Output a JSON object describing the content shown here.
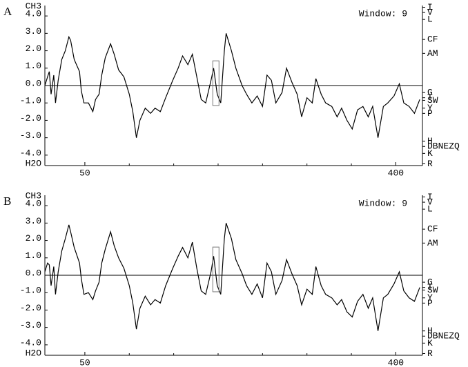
{
  "chart_data": [
    {
      "type": "line",
      "panel_label": "A",
      "annotation": "Window: 9",
      "top_label": "CH3",
      "bottom_label": "H2O",
      "x": [
        5,
        8,
        10,
        12,
        15,
        17,
        20,
        24,
        28,
        32,
        34,
        38,
        44,
        46,
        49,
        54,
        59,
        62,
        66,
        69,
        73,
        79,
        83,
        88,
        94,
        100,
        104,
        108,
        112,
        118,
        124,
        129,
        135,
        141,
        149,
        155,
        160,
        166,
        171,
        176,
        181,
        186,
        192,
        195,
        199,
        203,
        207,
        209,
        215,
        220,
        227,
        232,
        238,
        244,
        250,
        255,
        260,
        265,
        272,
        277,
        283,
        289,
        294,
        300,
        306,
        310,
        316,
        321,
        328,
        334,
        339,
        345,
        351,
        357,
        363,
        369,
        374,
        380,
        386,
        391,
        398,
        404,
        409,
        415,
        421,
        427
      ],
      "values": [
        0.0,
        0.5,
        0.8,
        -0.5,
        0.6,
        -1.0,
        0.3,
        1.5,
        2.0,
        2.8,
        2.6,
        1.5,
        0.8,
        -0.3,
        -1.0,
        -1.0,
        -1.5,
        -0.8,
        -0.5,
        0.6,
        1.6,
        2.4,
        1.8,
        0.9,
        0.5,
        -0.5,
        -1.5,
        -3.0,
        -2.0,
        -1.3,
        -1.6,
        -1.3,
        -1.5,
        -0.7,
        0.3,
        1.0,
        1.7,
        1.2,
        1.8,
        0.5,
        -0.8,
        -1.0,
        0.3,
        1.0,
        -0.5,
        -1.0,
        2.0,
        3.0,
        2.0,
        1.0,
        0.0,
        -0.5,
        -1.0,
        -0.6,
        -1.2,
        0.6,
        0.3,
        -1.0,
        -0.4,
        1.0,
        0.2,
        -0.5,
        -1.8,
        -0.7,
        -1.0,
        0.4,
        -0.5,
        -1.0,
        -1.2,
        -1.8,
        -1.3,
        -2.0,
        -2.5,
        -1.4,
        -1.2,
        -1.8,
        -1.2,
        -3.0,
        -1.2,
        -1.0,
        -0.6,
        0.1,
        -1.0,
        -1.2,
        -1.6,
        -0.8
      ],
      "color": "#000000",
      "xlim": [
        5,
        430
      ],
      "xticks": [
        50,
        400
      ],
      "xminorticks": [
        100,
        150,
        200,
        250,
        300,
        350
      ],
      "ylim": [
        -4.6,
        4.6
      ],
      "yticks": [
        {
          "value": 4,
          "label": "4.0"
        },
        {
          "value": 3,
          "label": "3.0"
        },
        {
          "value": 2,
          "label": "2.0"
        },
        {
          "value": 1,
          "label": "1.0"
        },
        {
          "value": 0,
          "label": "0.0"
        },
        {
          "value": -1,
          "label": "-1.0"
        },
        {
          "value": -2,
          "label": "-2.0"
        },
        {
          "value": -3,
          "label": "-3.0"
        },
        {
          "value": -4,
          "label": "-4.0"
        }
      ],
      "y2ticks": [
        {
          "value": 4.5,
          "label": "I"
        },
        {
          "value": 4.2,
          "label": "V"
        },
        {
          "value": 3.8,
          "label": "L"
        },
        {
          "value": 2.65,
          "label": "CF"
        },
        {
          "value": 1.85,
          "label": "AM"
        },
        {
          "value": -0.4,
          "label": "G"
        },
        {
          "value": -0.7,
          "label": "T"
        },
        {
          "value": -0.85,
          "label": "SW"
        },
        {
          "value": -1.3,
          "label": "Y"
        },
        {
          "value": -1.6,
          "label": "P"
        },
        {
          "value": -3.2,
          "label": "H"
        },
        {
          "value": -3.5,
          "label": "DBNEZQ"
        },
        {
          "value": -3.9,
          "label": "K"
        },
        {
          "value": -4.5,
          "label": "R"
        }
      ],
      "highlight": {
        "x": [
          194,
          201
        ],
        "y": [
          -1.15,
          1.42
        ]
      }
    },
    {
      "type": "line",
      "panel_label": "B",
      "annotation": "Window: 9",
      "top_label": "CH3",
      "bottom_label": "H2O",
      "x": [
        5,
        8,
        10,
        12,
        15,
        17,
        20,
        24,
        28,
        32,
        34,
        38,
        44,
        46,
        49,
        54,
        59,
        62,
        66,
        69,
        73,
        79,
        83,
        88,
        94,
        100,
        104,
        108,
        112,
        118,
        124,
        129,
        135,
        141,
        149,
        155,
        160,
        166,
        171,
        176,
        181,
        186,
        192,
        195,
        199,
        203,
        207,
        209,
        215,
        220,
        227,
        232,
        238,
        244,
        250,
        255,
        260,
        265,
        272,
        277,
        283,
        289,
        294,
        300,
        306,
        310,
        316,
        321,
        328,
        334,
        339,
        345,
        351,
        357,
        363,
        369,
        374,
        380,
        386,
        391,
        398,
        404,
        409,
        415,
        421,
        427
      ],
      "values": [
        0.2,
        0.7,
        0.6,
        -0.6,
        0.5,
        -1.1,
        0.2,
        1.4,
        2.1,
        2.9,
        2.5,
        1.6,
        0.7,
        -0.2,
        -1.1,
        -1.0,
        -1.4,
        -0.9,
        -0.4,
        0.7,
        1.5,
        2.5,
        1.7,
        1.0,
        0.4,
        -0.6,
        -1.6,
        -3.1,
        -1.9,
        -1.2,
        -1.7,
        -1.4,
        -1.6,
        -0.6,
        0.4,
        1.1,
        1.6,
        1.0,
        1.9,
        0.4,
        -0.9,
        -1.1,
        0.2,
        1.1,
        -0.6,
        -1.1,
        2.1,
        3.0,
        2.1,
        0.9,
        0.1,
        -0.6,
        -1.1,
        -0.5,
        -1.3,
        0.7,
        0.2,
        -1.1,
        -0.3,
        0.9,
        0.1,
        -0.6,
        -1.7,
        -0.8,
        -1.1,
        0.5,
        -0.6,
        -1.1,
        -1.3,
        -1.7,
        -1.4,
        -2.1,
        -2.4,
        -1.5,
        -1.1,
        -1.9,
        -1.3,
        -3.2,
        -1.3,
        -1.1,
        -0.5,
        0.2,
        -0.9,
        -1.3,
        -1.5,
        -0.7
      ],
      "color": "#000000",
      "xlim": [
        5,
        430
      ],
      "xticks": [
        50,
        400
      ],
      "xminorticks": [
        100,
        150,
        200,
        250,
        300,
        350
      ],
      "ylim": [
        -4.6,
        4.6
      ],
      "yticks": [
        {
          "value": 4,
          "label": "4.0"
        },
        {
          "value": 3,
          "label": "3.0"
        },
        {
          "value": 2,
          "label": "2.0"
        },
        {
          "value": 1,
          "label": "1.0"
        },
        {
          "value": 0,
          "label": "0.0"
        },
        {
          "value": -1,
          "label": "-1.0"
        },
        {
          "value": -2,
          "label": "-2.0"
        },
        {
          "value": -3,
          "label": "-3.0"
        },
        {
          "value": -4,
          "label": "-4.0"
        }
      ],
      "y2ticks": [
        {
          "value": 4.5,
          "label": "I"
        },
        {
          "value": 4.2,
          "label": "V"
        },
        {
          "value": 3.8,
          "label": "L"
        },
        {
          "value": 2.65,
          "label": "CF"
        },
        {
          "value": 1.85,
          "label": "AM"
        },
        {
          "value": -0.4,
          "label": "G"
        },
        {
          "value": -0.7,
          "label": "T"
        },
        {
          "value": -0.85,
          "label": "SW"
        },
        {
          "value": -1.3,
          "label": "Y"
        },
        {
          "value": -1.6,
          "label": "P"
        },
        {
          "value": -3.2,
          "label": "H"
        },
        {
          "value": -3.5,
          "label": "DBNEZQ"
        },
        {
          "value": -3.9,
          "label": "K"
        },
        {
          "value": -4.5,
          "label": "R"
        }
      ],
      "highlight": {
        "x": [
          194,
          201
        ],
        "y": [
          -0.95,
          1.62
        ]
      }
    }
  ]
}
